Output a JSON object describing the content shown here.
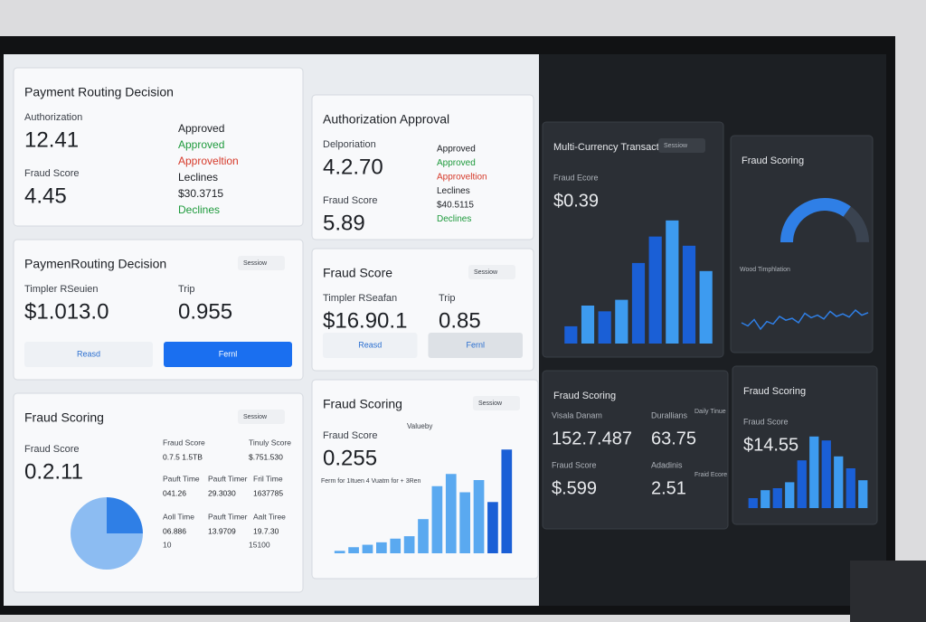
{
  "panels": [
    {
      "title": "Payment Routing Decision",
      "metrics": [
        [
          "Authorization",
          "12.41"
        ],
        [
          "Fraud Score",
          "4.45"
        ]
      ],
      "status": [
        "Approved",
        "Approved",
        "Approveltion",
        "Leclines",
        "$30.3715",
        "Declines"
      ]
    },
    {
      "title": "Authorization Approval",
      "metrics": [
        [
          "Delporiation",
          "4.2.70"
        ],
        [
          "Fraud Score",
          "5.89"
        ]
      ],
      "status": [
        "Approved",
        "Approved",
        "Approveltion",
        "Leclines",
        "$40.5115",
        "Declines"
      ]
    },
    {
      "title": "PaymenRouting Decision",
      "menu": "Sessiow",
      "metrics": [
        [
          "Timpler RSeuien",
          "$1.013.0"
        ],
        [
          "Trip",
          "0.955"
        ]
      ],
      "buttons": [
        "Reasd",
        "Fernl"
      ]
    },
    {
      "title": "Fraud Score",
      "menu": "Sessiow",
      "metrics": [
        [
          "Timpler RSeafan",
          "$16.90.1"
        ],
        [
          "Trip",
          "0.85"
        ]
      ],
      "buttons": [
        "Reasd",
        "Fernl"
      ]
    },
    {
      "title": "Fraud Scoring",
      "menu": "Sessiow",
      "metrics": [
        [
          "Fraud Score",
          "0.2.11"
        ]
      ],
      "cells": [
        "Fraud Score",
        "0.7.5 1.5TB",
        "Tinuly Score",
        "$.751.530",
        "Pauft Time",
        "041.26",
        "Pauft Timer",
        "29.3030",
        "Fril Time",
        "1637785",
        "Aoll Time",
        "06.886",
        "Pauft Timer",
        "13.9709",
        "Aalt Tiree",
        "19.7.30",
        "10",
        "15100"
      ],
      "chart": {
        "type": "pie",
        "values": [
          75,
          25
        ],
        "colors": [
          "#8cbcf2",
          "#2f7fe6"
        ]
      }
    },
    {
      "title": "Fraud Scoring",
      "menu": "Sessiow",
      "metrics": [
        [
          "Fraud Score",
          "0.255"
        ]
      ],
      "extra": "Valueby",
      "caption": "Ferm for 1Ituen 4 Vuatm for + 3Ren",
      "chart": {
        "type": "bar",
        "values": [
          2,
          5,
          7,
          9,
          12,
          14,
          28,
          55,
          65,
          50,
          60,
          42,
          85
        ],
        "ylim": [
          0,
          100
        ],
        "colors": [
          "#5aa9f0",
          "#5aa9f0",
          "#5aa9f0",
          "#5aa9f0",
          "#5aa9f0",
          "#5aa9f0",
          "#5aa9f0",
          "#5aa9f0",
          "#5aa9f0",
          "#5aa9f0",
          "#5aa9f0",
          "#1a5fd6",
          "#1a5fd6"
        ]
      }
    },
    {
      "title": "Multi-Currency Transactions",
      "menu": "Sessiow",
      "metrics": [
        [
          "Fraud Ecore",
          "$0.39"
        ]
      ],
      "chart": {
        "type": "bar",
        "values": [
          15,
          33,
          28,
          38,
          70,
          93,
          107,
          85,
          63
        ],
        "ylim": [
          0,
          110
        ],
        "colors": [
          "#1a5fd6",
          "#3d9bf0",
          "#1a5fd6",
          "#3d9bf0",
          "#1a5fd6",
          "#1a5fd6",
          "#3d9bf0",
          "#1a5fd6",
          "#3d9bf0"
        ]
      }
    },
    {
      "title": "Fraud Scoring",
      "caption": "Wood Timphlation",
      "gauge": {
        "type": "gauge",
        "value": 70,
        "ylim": [
          0,
          100
        ],
        "color": "#2f7fe6"
      },
      "line": {
        "type": "line",
        "values": [
          40,
          35,
          45,
          30,
          42,
          38,
          50,
          44,
          47,
          40,
          55,
          48,
          52,
          46,
          58,
          50,
          54,
          49,
          60,
          52,
          56
        ],
        "ylim": [
          0,
          100
        ],
        "color": "#2f7fe6"
      }
    },
    {
      "title": "Fraud Scoring",
      "metrics": [
        [
          "Visala Danam",
          "152.7.487"
        ],
        [
          "Durallians",
          "63.75"
        ],
        [
          "Fraud Score",
          "$.599"
        ],
        [
          "Adadinis",
          "2.51"
        ]
      ],
      "notes": [
        "Daily Tinue",
        "Fraid Ecore"
      ]
    },
    {
      "title": "Fraud Scoring",
      "metrics": [
        [
          "Fraud Score",
          "$14.55"
        ]
      ],
      "chart": {
        "type": "bar",
        "values": [
          10,
          18,
          20,
          26,
          48,
          72,
          68,
          52,
          40,
          28
        ],
        "ylim": [
          0,
          100
        ],
        "colors": [
          "#1a5fd6",
          "#3d9bf0",
          "#1a5fd6",
          "#3d9bf0",
          "#1a5fd6",
          "#3d9bf0",
          "#1a5fd6",
          "#3d9bf0",
          "#1a5fd6",
          "#3d9bf0"
        ]
      }
    }
  ]
}
